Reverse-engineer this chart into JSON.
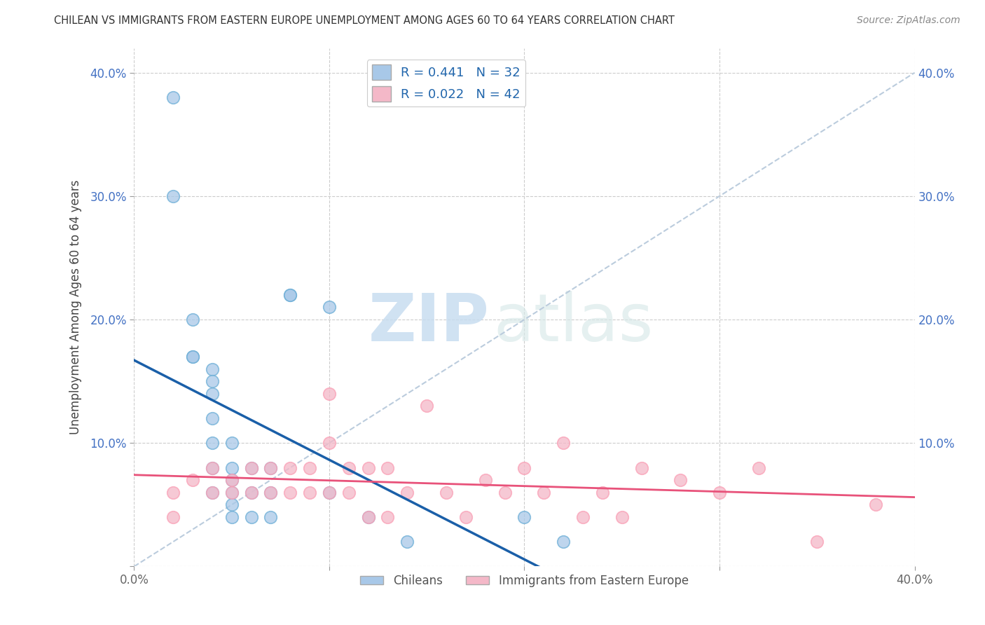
{
  "title": "CHILEAN VS IMMIGRANTS FROM EASTERN EUROPE UNEMPLOYMENT AMONG AGES 60 TO 64 YEARS CORRELATION CHART",
  "source": "Source: ZipAtlas.com",
  "ylabel": "Unemployment Among Ages 60 to 64 years",
  "xlim": [
    0.0,
    0.4
  ],
  "ylim": [
    0.0,
    0.42
  ],
  "x_ticks": [
    0.0,
    0.1,
    0.2,
    0.3,
    0.4
  ],
  "x_tick_labels": [
    "0.0%",
    "",
    "",
    "",
    "40.0%"
  ],
  "y_ticks": [
    0.0,
    0.1,
    0.2,
    0.3,
    0.4
  ],
  "y_tick_labels": [
    "",
    "10.0%",
    "20.0%",
    "30.0%",
    "40.0%"
  ],
  "chilean_R": 0.441,
  "chilean_N": 32,
  "immigrant_R": 0.022,
  "immigrant_N": 42,
  "chilean_color": "#a8c8e8",
  "chilean_edge_color": "#6baed6",
  "immigrant_color": "#f4b8c8",
  "immigrant_edge_color": "#fa9fb5",
  "chilean_line_color": "#1a5fa8",
  "immigrant_line_color": "#e8527a",
  "diagonal_color": "#bbccdd",
  "legend_label_chilean": "Chileans",
  "legend_label_immigrant": "Immigrants from Eastern Europe",
  "watermark_zip": "ZIP",
  "watermark_atlas": "atlas",
  "chilean_x": [
    0.02,
    0.02,
    0.03,
    0.03,
    0.03,
    0.04,
    0.04,
    0.04,
    0.04,
    0.04,
    0.04,
    0.04,
    0.05,
    0.05,
    0.05,
    0.05,
    0.05,
    0.05,
    0.06,
    0.06,
    0.06,
    0.07,
    0.07,
    0.07,
    0.08,
    0.08,
    0.1,
    0.1,
    0.12,
    0.14,
    0.2,
    0.22
  ],
  "chilean_y": [
    0.38,
    0.3,
    0.2,
    0.17,
    0.17,
    0.16,
    0.15,
    0.14,
    0.12,
    0.1,
    0.08,
    0.06,
    0.1,
    0.08,
    0.07,
    0.06,
    0.05,
    0.04,
    0.08,
    0.06,
    0.04,
    0.08,
    0.06,
    0.04,
    0.22,
    0.22,
    0.21,
    0.06,
    0.04,
    0.02,
    0.04,
    0.02
  ],
  "immigrant_x": [
    0.02,
    0.02,
    0.03,
    0.04,
    0.04,
    0.05,
    0.05,
    0.06,
    0.06,
    0.07,
    0.07,
    0.08,
    0.08,
    0.09,
    0.09,
    0.1,
    0.1,
    0.1,
    0.11,
    0.11,
    0.12,
    0.12,
    0.13,
    0.13,
    0.14,
    0.15,
    0.16,
    0.17,
    0.18,
    0.19,
    0.2,
    0.21,
    0.22,
    0.23,
    0.24,
    0.25,
    0.26,
    0.28,
    0.3,
    0.32,
    0.35,
    0.38
  ],
  "immigrant_y": [
    0.06,
    0.04,
    0.07,
    0.08,
    0.06,
    0.07,
    0.06,
    0.08,
    0.06,
    0.08,
    0.06,
    0.08,
    0.06,
    0.08,
    0.06,
    0.14,
    0.1,
    0.06,
    0.08,
    0.06,
    0.08,
    0.04,
    0.08,
    0.04,
    0.06,
    0.13,
    0.06,
    0.04,
    0.07,
    0.06,
    0.08,
    0.06,
    0.1,
    0.04,
    0.06,
    0.04,
    0.08,
    0.07,
    0.06,
    0.08,
    0.02,
    0.05
  ]
}
